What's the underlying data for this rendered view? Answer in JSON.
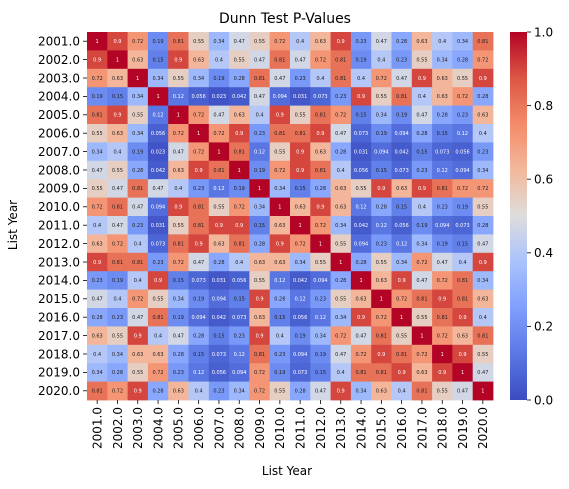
{
  "chart_data": {
    "type": "heatmap",
    "title": "Dunn Test P-Values",
    "xlabel": "List Year",
    "ylabel": "List Year",
    "categories": [
      "2001.0",
      "2002.0",
      "2003.0",
      "2004.0",
      "2005.0",
      "2006.0",
      "2007.0",
      "2008.0",
      "2009.0",
      "2010.0",
      "2011.0",
      "2012.0",
      "2013.0",
      "2014.0",
      "2015.0",
      "2016.0",
      "2017.0",
      "2018.0",
      "2019.0",
      "2020.0"
    ],
    "values": [
      [
        1,
        0.9,
        0.72,
        0.19,
        0.81,
        0.55,
        0.34,
        0.47,
        0.55,
        0.72,
        0.4,
        0.63,
        0.9,
        0.23,
        0.47,
        0.28,
        0.63,
        0.4,
        0.34,
        0.81
      ],
      [
        0.9,
        1,
        0.63,
        0.15,
        0.9,
        0.63,
        0.4,
        0.55,
        0.47,
        0.81,
        0.47,
        0.72,
        0.81,
        0.19,
        0.4,
        0.23,
        0.55,
        0.34,
        0.28,
        0.72
      ],
      [
        0.72,
        0.63,
        1,
        0.34,
        0.55,
        0.34,
        0.19,
        0.28,
        0.81,
        0.47,
        0.23,
        0.4,
        0.81,
        0.4,
        0.72,
        0.47,
        0.9,
        0.63,
        0.55,
        0.9
      ],
      [
        0.19,
        0.15,
        0.34,
        1,
        0.12,
        0.056,
        0.023,
        0.042,
        0.47,
        0.094,
        0.031,
        0.073,
        0.23,
        0.9,
        0.55,
        0.81,
        0.4,
        0.63,
        0.72,
        0.28
      ],
      [
        0.81,
        0.9,
        0.55,
        0.12,
        1,
        0.72,
        0.47,
        0.63,
        0.4,
        0.9,
        0.55,
        0.81,
        0.72,
        0.15,
        0.34,
        0.19,
        0.47,
        0.28,
        0.23,
        0.63
      ],
      [
        0.55,
        0.63,
        0.34,
        0.056,
        0.72,
        1,
        0.72,
        0.9,
        0.23,
        0.81,
        0.81,
        0.9,
        0.47,
        0.073,
        0.19,
        0.094,
        0.28,
        0.15,
        0.12,
        0.4
      ],
      [
        0.34,
        0.4,
        0.19,
        0.023,
        0.47,
        0.72,
        1,
        0.81,
        0.12,
        0.55,
        0.9,
        0.63,
        0.28,
        0.031,
        0.094,
        0.042,
        0.15,
        0.073,
        0.056,
        0.23
      ],
      [
        0.47,
        0.55,
        0.28,
        0.042,
        0.63,
        0.9,
        0.81,
        1,
        0.19,
        0.72,
        0.9,
        0.81,
        0.4,
        0.056,
        0.15,
        0.073,
        0.23,
        0.12,
        0.094,
        0.34
      ],
      [
        0.55,
        0.47,
        0.81,
        0.47,
        0.4,
        0.23,
        0.12,
        0.19,
        1,
        0.34,
        0.15,
        0.28,
        0.63,
        0.55,
        0.9,
        0.63,
        0.9,
        0.81,
        0.72,
        0.72
      ],
      [
        0.72,
        0.81,
        0.47,
        0.094,
        0.9,
        0.81,
        0.55,
        0.72,
        0.34,
        1,
        0.63,
        0.9,
        0.63,
        0.12,
        0.28,
        0.15,
        0.4,
        0.23,
        0.19,
        0.55
      ],
      [
        0.4,
        0.47,
        0.23,
        0.031,
        0.55,
        0.81,
        0.9,
        0.9,
        0.15,
        0.63,
        1,
        0.72,
        0.34,
        0.042,
        0.12,
        0.056,
        0.19,
        0.094,
        0.073,
        0.28
      ],
      [
        0.63,
        0.72,
        0.4,
        0.073,
        0.81,
        0.9,
        0.63,
        0.81,
        0.28,
        0.9,
        0.72,
        1,
        0.55,
        0.094,
        0.23,
        0.12,
        0.34,
        0.19,
        0.15,
        0.47
      ],
      [
        0.9,
        0.81,
        0.81,
        0.23,
        0.72,
        0.47,
        0.28,
        0.4,
        0.63,
        0.63,
        0.34,
        0.55,
        1,
        0.28,
        0.55,
        0.34,
        0.72,
        0.47,
        0.4,
        0.9
      ],
      [
        0.23,
        0.19,
        0.4,
        0.9,
        0.15,
        0.073,
        0.031,
        0.056,
        0.55,
        0.12,
        0.042,
        0.094,
        0.28,
        1,
        0.63,
        0.9,
        0.47,
        0.72,
        0.81,
        0.34
      ],
      [
        0.47,
        0.4,
        0.72,
        0.55,
        0.34,
        0.19,
        0.094,
        0.15,
        0.9,
        0.28,
        0.12,
        0.23,
        0.55,
        0.63,
        1,
        0.72,
        0.81,
        0.9,
        0.81,
        0.63
      ],
      [
        0.28,
        0.23,
        0.47,
        0.81,
        0.19,
        0.094,
        0.042,
        0.073,
        0.63,
        0.15,
        0.056,
        0.12,
        0.34,
        0.9,
        0.72,
        1,
        0.55,
        0.81,
        0.9,
        0.4
      ],
      [
        0.63,
        0.55,
        0.9,
        0.4,
        0.47,
        0.28,
        0.15,
        0.23,
        0.9,
        0.4,
        0.19,
        0.34,
        0.72,
        0.47,
        0.81,
        0.55,
        1,
        0.72,
        0.63,
        0.81
      ],
      [
        0.4,
        0.34,
        0.63,
        0.63,
        0.28,
        0.15,
        0.073,
        0.12,
        0.81,
        0.23,
        0.094,
        0.19,
        0.47,
        0.72,
        0.9,
        0.81,
        0.72,
        1,
        0.9,
        0.55
      ],
      [
        0.34,
        0.28,
        0.55,
        0.72,
        0.23,
        0.12,
        0.056,
        0.094,
        0.72,
        0.19,
        0.073,
        0.15,
        0.4,
        0.81,
        0.81,
        0.9,
        0.63,
        0.9,
        1,
        0.47
      ],
      [
        0.81,
        0.72,
        0.9,
        0.28,
        0.63,
        0.4,
        0.23,
        0.34,
        0.72,
        0.55,
        0.28,
        0.47,
        0.9,
        0.34,
        0.63,
        0.4,
        0.81,
        0.55,
        0.47,
        1
      ]
    ],
    "colorscale": "coolwarm",
    "colorbar": {
      "range": [
        0.0,
        1.0
      ],
      "ticks": [
        "0.0",
        "0.2",
        "0.4",
        "0.6",
        "0.8",
        "1.0"
      ]
    },
    "colors": {
      "low": "#3b4cc0",
      "mid": "#dddddd",
      "high": "#b40426"
    }
  }
}
